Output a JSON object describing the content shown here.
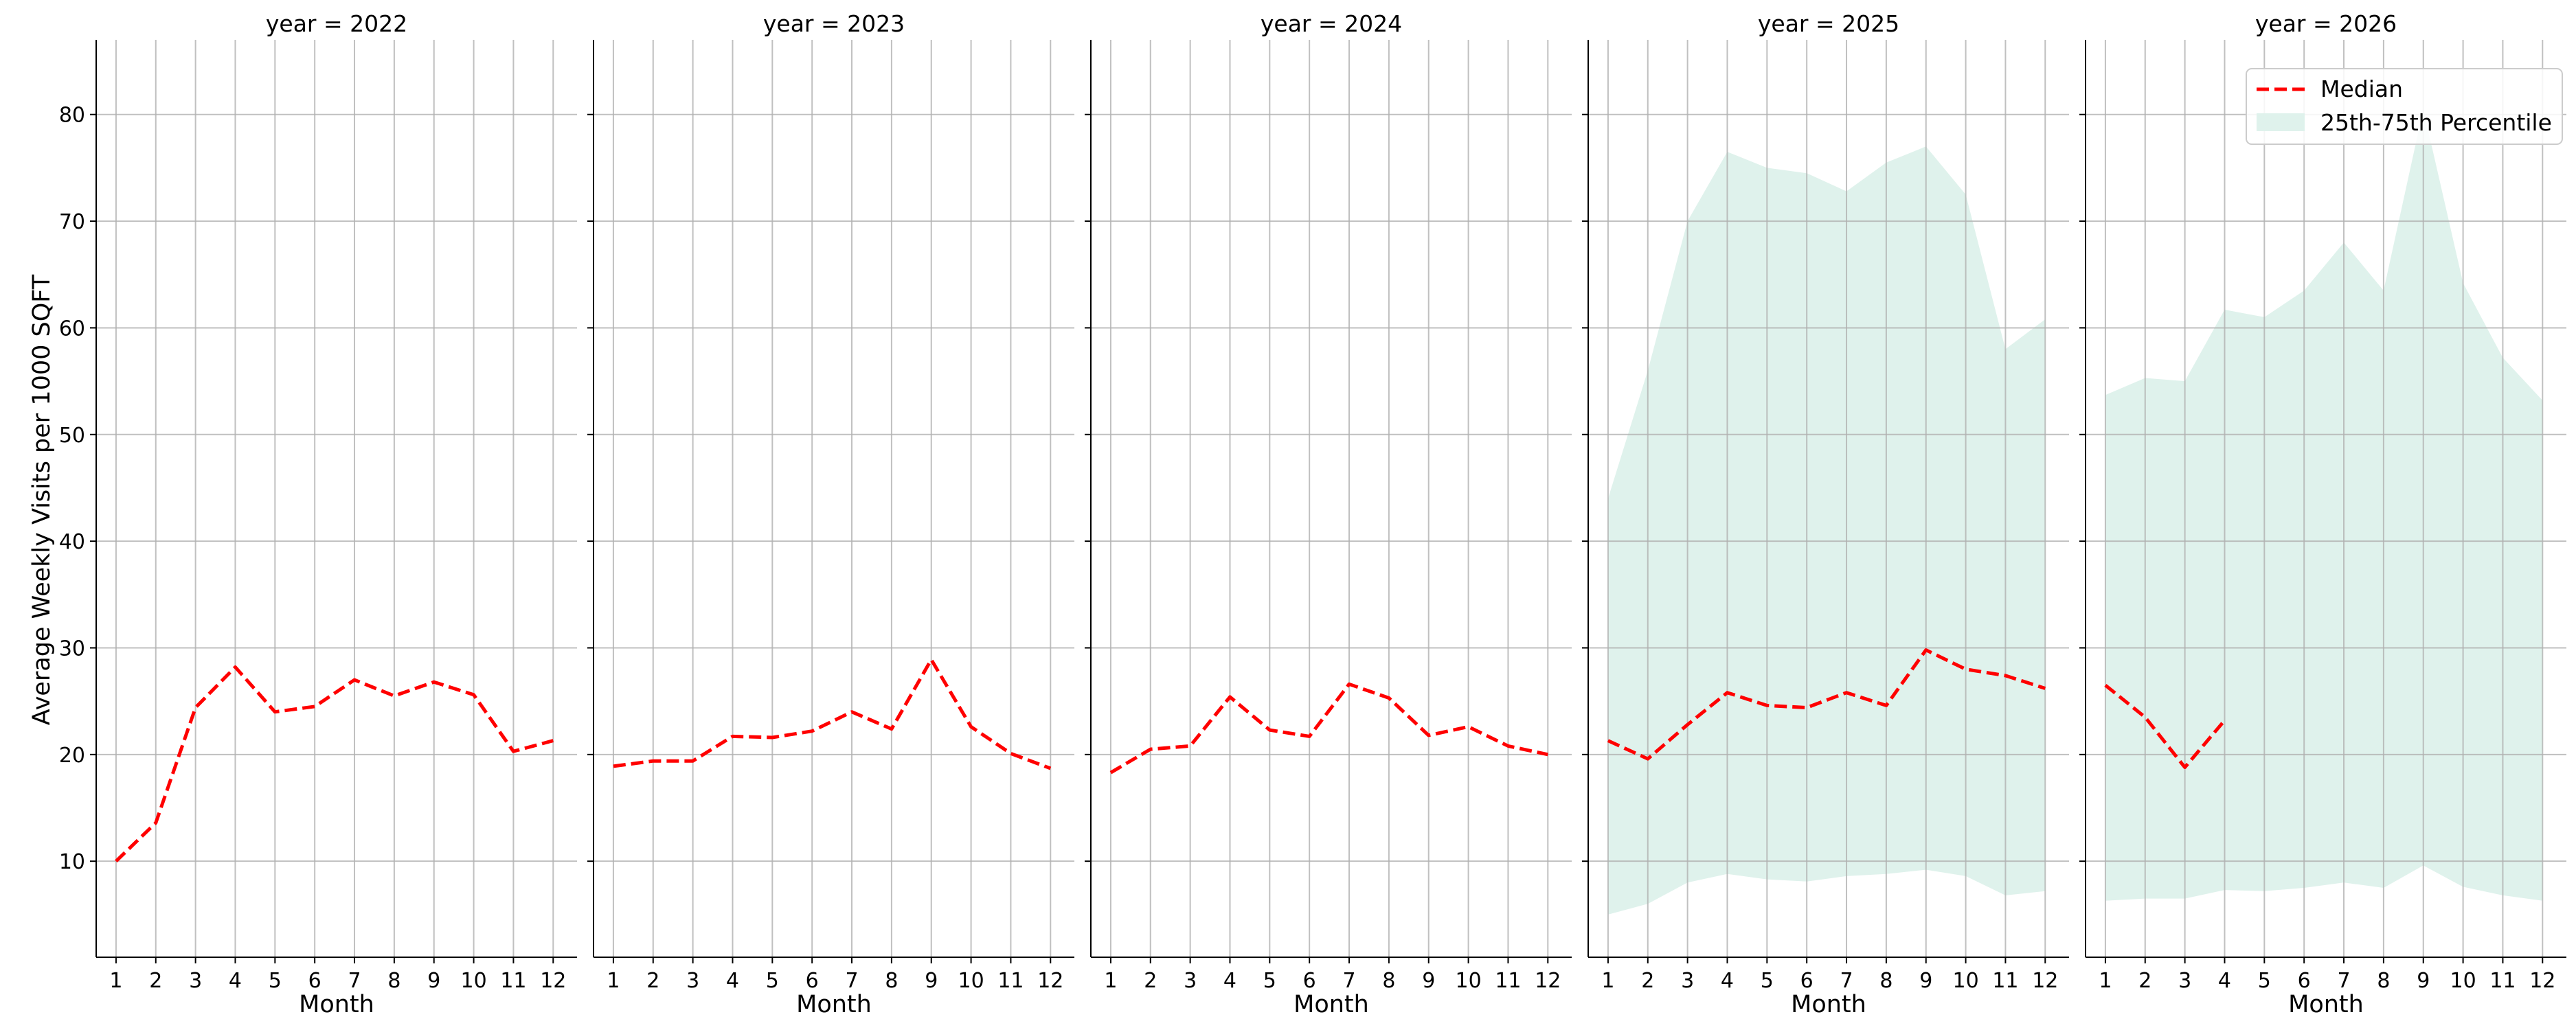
{
  "chart_data": {
    "type": "line",
    "ylabel": "Average Weekly Visits per 1000 SQFT",
    "ylim": [
      1,
      87
    ],
    "yticks": [
      10,
      20,
      30,
      40,
      50,
      60,
      70,
      80
    ],
    "grid": true,
    "legend": {
      "placement": "top-right of last panel",
      "entries": [
        "Median",
        "25th-75th Percentile"
      ]
    },
    "colors": {
      "median": "#ff0000",
      "band": "#dff2ec",
      "grid": "#b0b0b0"
    },
    "panels": [
      {
        "title": "year = 2022",
        "xlabel": "Month",
        "x": [
          1,
          2,
          3,
          4,
          5,
          6,
          7,
          8,
          9,
          10,
          11,
          12
        ],
        "median": [
          10.0,
          13.6,
          24.4,
          28.2,
          24.0,
          24.5,
          27.0,
          25.5,
          26.8,
          25.6,
          20.3,
          21.3
        ],
        "p25": [],
        "p75": []
      },
      {
        "title": "year = 2023",
        "xlabel": "Month",
        "x": [
          1,
          2,
          3,
          4,
          5,
          6,
          7,
          8,
          9,
          10,
          11,
          12
        ],
        "median": [
          18.9,
          19.4,
          19.4,
          21.7,
          21.6,
          22.2,
          24.0,
          22.4,
          28.9,
          22.6,
          20.1,
          18.7
        ],
        "p25": [],
        "p75": []
      },
      {
        "title": "year = 2024",
        "xlabel": "Month",
        "x": [
          1,
          2,
          3,
          4,
          5,
          6,
          7,
          8,
          9,
          10,
          11,
          12
        ],
        "median": [
          18.3,
          20.5,
          20.8,
          25.4,
          22.3,
          21.7,
          26.6,
          25.3,
          21.8,
          22.6,
          20.8,
          20.0
        ],
        "p25": [],
        "p75": []
      },
      {
        "title": "year = 2025",
        "xlabel": "Month",
        "x": [
          1,
          2,
          3,
          4,
          5,
          6,
          7,
          8,
          9,
          10,
          11,
          12
        ],
        "median": [
          21.3,
          19.6,
          22.8,
          25.8,
          24.6,
          24.4,
          25.8,
          24.6,
          29.8,
          28.0,
          27.4,
          26.2
        ],
        "p25": [
          5.0,
          6.0,
          8.0,
          8.8,
          8.3,
          8.1,
          8.6,
          8.8,
          9.2,
          8.6,
          6.8,
          7.2
        ],
        "p75": [
          44.0,
          56.0,
          70.0,
          76.5,
          75.0,
          74.5,
          72.8,
          75.5,
          77.0,
          72.5,
          58.0,
          60.8
        ]
      },
      {
        "title": "year = 2026",
        "xlabel": "Month",
        "x": [
          1,
          2,
          3,
          4
        ],
        "median": [
          26.5,
          23.5,
          18.8,
          23.2
        ],
        "band_x": [
          1,
          2,
          3,
          4,
          5,
          6,
          7,
          8,
          9,
          10,
          11,
          12
        ],
        "p25": [
          6.3,
          6.5,
          6.5,
          7.3,
          7.2,
          7.5,
          8.0,
          7.5,
          9.6,
          7.6,
          6.8,
          6.3
        ],
        "p75": [
          53.7,
          55.3,
          55.0,
          61.7,
          61.0,
          63.5,
          68.0,
          63.5,
          80.5,
          64.2,
          57.2,
          53.2
        ]
      }
    ]
  }
}
